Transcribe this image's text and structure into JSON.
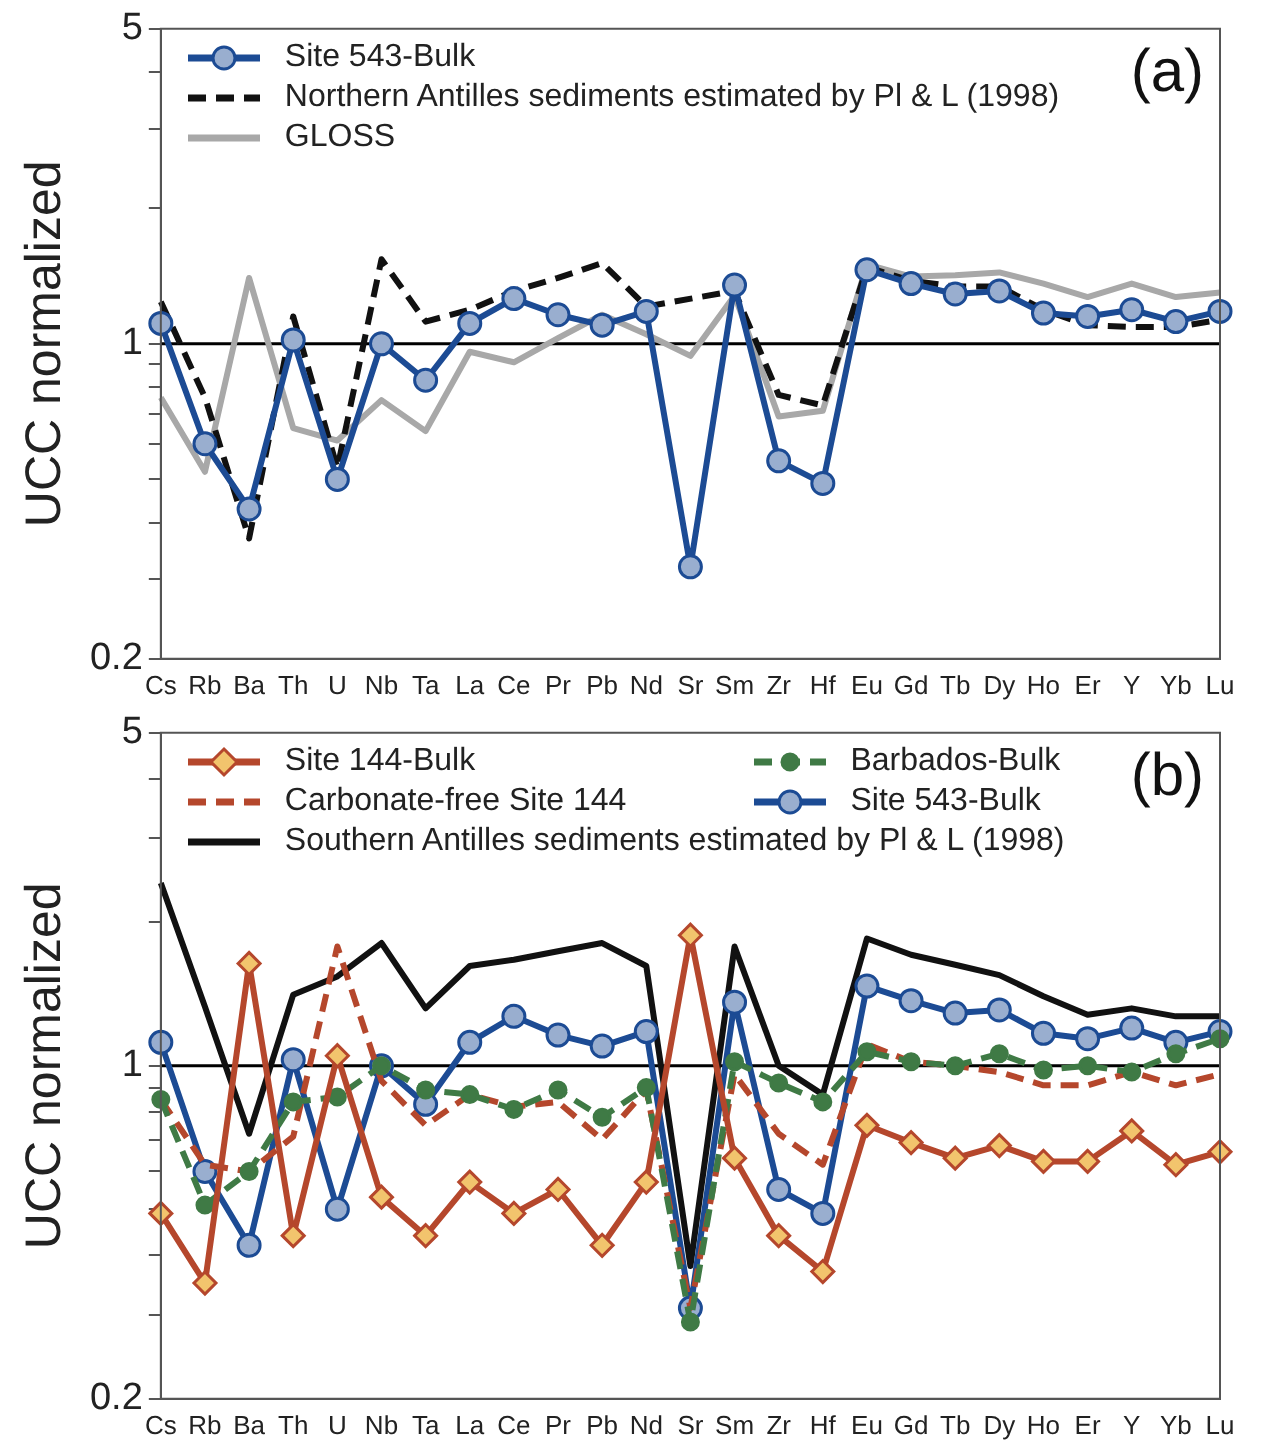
{
  "chart_data": [
    {
      "type": "line",
      "ylabel": "UCC normalized",
      "log": "y",
      "ylim": [
        0.2,
        5
      ],
      "grid": false,
      "legend": "top left",
      "annotations": [
        "(a)"
      ],
      "yticks": [
        0.2,
        {
          "value": 0.3,
          "label": null
        },
        {
          "value": 0.4,
          "label": null
        },
        {
          "value": 0.5,
          "label": null
        },
        {
          "value": 0.6,
          "label": null
        },
        {
          "value": 0.7,
          "label": null
        },
        {
          "value": 0.8,
          "label": null
        },
        {
          "value": 0.9,
          "label": null
        },
        1,
        {
          "value": 2,
          "label": null
        },
        {
          "value": 3,
          "label": null
        },
        {
          "value": 4,
          "label": null
        },
        5
      ],
      "ref_lines": [
        {
          "axis": "y",
          "value": 1,
          "color": "#000000"
        }
      ],
      "categories": [
        "Cs",
        "Rb",
        "Ba",
        "Th",
        "U",
        "Nb",
        "Ta",
        "La",
        "Ce",
        "Pr",
        "Pb",
        "Nd",
        "Sr",
        "Sm",
        "Zr",
        "Hf",
        "Eu",
        "Gd",
        "Tb",
        "Dy",
        "Ho",
        "Er",
        "Y",
        "Yb",
        "Lu"
      ],
      "series": [
        {
          "name": "Site 543-Bulk",
          "color": "#1c4b94",
          "marker": "circle",
          "line_style": "solid",
          "values": [
            1.11,
            0.6,
            0.43,
            1.02,
            0.5,
            1.0,
            0.83,
            1.11,
            1.26,
            1.16,
            1.1,
            1.18,
            0.32,
            1.35,
            0.55,
            0.49,
            1.46,
            1.36,
            1.29,
            1.31,
            1.17,
            1.15,
            1.19,
            1.12,
            1.18
          ]
        },
        {
          "name": "Northern Antilles sediments estimated by Pl & L (1998)",
          "color": "#111111",
          "marker": "none",
          "line_style": "dashed",
          "values": [
            1.24,
            0.76,
            0.37,
            1.15,
            0.53,
            1.54,
            1.12,
            1.19,
            1.31,
            1.4,
            1.51,
            1.21,
            null,
            1.31,
            0.77,
            0.73,
            1.48,
            1.38,
            1.34,
            1.34,
            1.19,
            1.1,
            1.09,
            1.09,
            1.13
          ]
        },
        {
          "name": "GLOSS",
          "color": "#a8a8a8",
          "marker": "none",
          "line_style": "solid",
          "values": [
            0.76,
            0.52,
            1.4,
            0.65,
            0.61,
            0.75,
            0.64,
            0.96,
            0.91,
            1.03,
            1.16,
            1.05,
            0.94,
            1.28,
            0.69,
            0.71,
            1.5,
            1.41,
            1.42,
            1.44,
            1.36,
            1.27,
            1.36,
            1.27,
            1.3
          ]
        }
      ]
    },
    {
      "type": "line",
      "ylabel": "UCC normalized",
      "log": "y",
      "ylim": [
        0.2,
        5
      ],
      "grid": false,
      "legend": "top left",
      "annotations": [
        "(b)"
      ],
      "yticks": [
        0.2,
        {
          "value": 0.3,
          "label": null
        },
        {
          "value": 0.4,
          "label": null
        },
        {
          "value": 0.5,
          "label": null
        },
        {
          "value": 0.6,
          "label": null
        },
        {
          "value": 0.7,
          "label": null
        },
        {
          "value": 0.8,
          "label": null
        },
        {
          "value": 0.9,
          "label": null
        },
        1,
        {
          "value": 2,
          "label": null
        },
        {
          "value": 3,
          "label": null
        },
        {
          "value": 4,
          "label": null
        },
        5
      ],
      "ref_lines": [
        {
          "axis": "y",
          "value": 1,
          "color": "#000000"
        }
      ],
      "categories": [
        "Cs",
        "Rb",
        "Ba",
        "Th",
        "U",
        "Nb",
        "Ta",
        "La",
        "Ce",
        "Pr",
        "Pb",
        "Nd",
        "Sr",
        "Sm",
        "Zr",
        "Hf",
        "Eu",
        "Gd",
        "Tb",
        "Dy",
        "Ho",
        "Er",
        "Y",
        "Yb",
        "Lu"
      ],
      "series": [
        {
          "name": "Site 144-Bulk",
          "color": "#b5472c",
          "marker": "diamond",
          "line_style": "solid",
          "values": [
            0.49,
            0.35,
            1.64,
            0.44,
            1.05,
            0.53,
            0.44,
            0.57,
            0.49,
            0.55,
            0.42,
            0.57,
            1.88,
            0.64,
            0.44,
            0.37,
            0.75,
            0.69,
            0.64,
            0.68,
            0.63,
            0.63,
            0.73,
            0.62,
            0.66
          ]
        },
        {
          "name": "Barbados-Bulk",
          "color": "#3f7a45",
          "marker": "circle",
          "line_style": "dashed",
          "values": [
            0.85,
            0.51,
            0.6,
            0.84,
            0.86,
            1.0,
            0.89,
            0.87,
            0.81,
            0.89,
            0.78,
            0.9,
            0.29,
            1.02,
            0.92,
            0.84,
            1.07,
            1.02,
            1.0,
            1.06,
            0.98,
            1.0,
            0.97,
            1.06,
            1.14
          ]
        },
        {
          "name": "Carbonate-free Site 144",
          "color": "#b5472c",
          "marker": "none",
          "line_style": "dashed",
          "values": [
            0.85,
            0.62,
            0.6,
            0.71,
            1.78,
            0.93,
            0.75,
            0.87,
            0.82,
            0.84,
            0.7,
            0.89,
            0.31,
            0.96,
            0.72,
            0.62,
            1.11,
            1.02,
            1.0,
            0.97,
            0.91,
            0.91,
            0.97,
            0.91,
            0.96
          ]
        },
        {
          "name": "Site 543-Bulk",
          "color": "#1c4b94",
          "marker": "circle",
          "line_style": "solid",
          "values": [
            1.12,
            0.6,
            0.42,
            1.03,
            0.5,
            1.0,
            0.83,
            1.12,
            1.27,
            1.16,
            1.1,
            1.18,
            0.31,
            1.36,
            0.55,
            0.49,
            1.47,
            1.37,
            1.29,
            1.31,
            1.17,
            1.14,
            1.2,
            1.12,
            1.18
          ]
        },
        {
          "name": "Southern Antilles sediments estimated by Pl & L (1998)",
          "color": "#111111",
          "marker": "none",
          "line_style": "solid",
          "values": [
            2.42,
            1.33,
            0.72,
            1.41,
            1.54,
            1.81,
            1.32,
            1.62,
            1.67,
            1.74,
            1.81,
            1.62,
            0.38,
            1.78,
            1.0,
            0.87,
            1.85,
            1.71,
            1.63,
            1.55,
            1.4,
            1.28,
            1.32,
            1.27,
            1.27
          ]
        }
      ]
    }
  ]
}
